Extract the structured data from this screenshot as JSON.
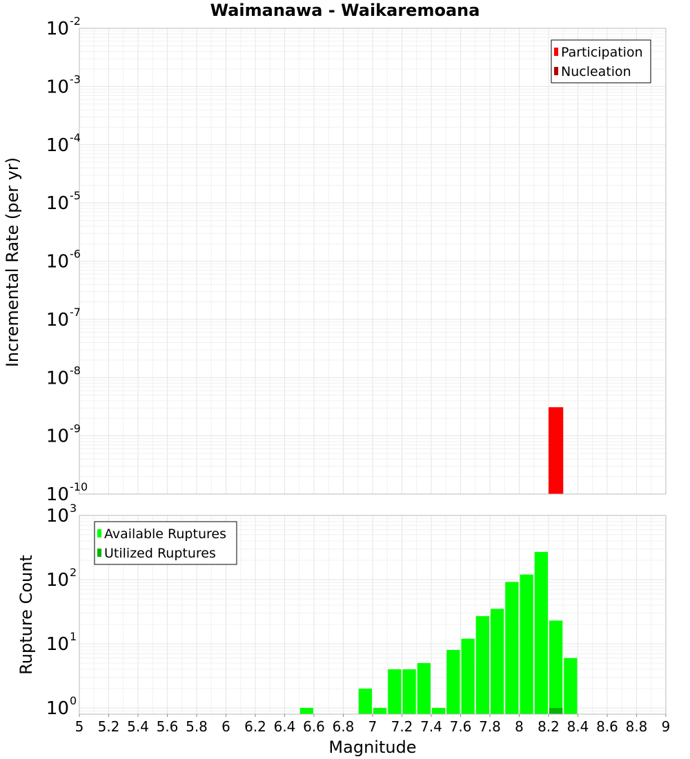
{
  "chart_data": [
    {
      "type": "bar",
      "panel": "rate",
      "title": "Waimanawa - Waikaremoana",
      "xlabel": "Magnitude",
      "ylabel": "Incremental Rate (per yr)",
      "yscale": "log",
      "ylim": [
        1e-10,
        0.01
      ],
      "y_ticks": [
        {
          "base": "10",
          "exp": "-2",
          "value": 0.01
        },
        {
          "base": "10",
          "exp": "-3",
          "value": 0.001
        },
        {
          "base": "10",
          "exp": "-4",
          "value": 0.0001
        },
        {
          "base": "10",
          "exp": "-5",
          "value": 1e-05
        },
        {
          "base": "10",
          "exp": "-6",
          "value": 1e-06
        },
        {
          "base": "10",
          "exp": "-7",
          "value": 1e-07
        },
        {
          "base": "10",
          "exp": "-8",
          "value": 1e-08
        },
        {
          "base": "10",
          "exp": "-9",
          "value": 1e-09
        },
        {
          "base": "10",
          "exp": "-10",
          "value": 1e-10
        }
      ],
      "legend": {
        "position": "top-right",
        "entries": [
          {
            "label": "Participation",
            "color": "#ff0000"
          },
          {
            "label": "Nucleation",
            "color": "#b40000"
          }
        ]
      },
      "series": [
        {
          "name": "Participation",
          "color": "#ff0000",
          "x": [
            8.25
          ],
          "values": [
            3.1e-09
          ]
        }
      ]
    },
    {
      "type": "bar",
      "panel": "count",
      "xlabel": "Magnitude",
      "ylabel": "Rupture Count",
      "yscale": "log",
      "ylim": [
        0.8,
        1000
      ],
      "xlim": [
        5,
        9
      ],
      "y_ticks": [
        {
          "base": "10",
          "exp": "3",
          "value": 1000
        },
        {
          "base": "10",
          "exp": "2",
          "value": 100
        },
        {
          "base": "10",
          "exp": "1",
          "value": 10
        },
        {
          "base": "10",
          "exp": "0",
          "value": 1
        }
      ],
      "x_ticks": [
        "5",
        "5.2",
        "5.4",
        "5.6",
        "5.8",
        "6",
        "6.2",
        "6.4",
        "6.6",
        "6.8",
        "7",
        "7.2",
        "7.4",
        "7.6",
        "7.8",
        "8",
        "8.2",
        "8.4",
        "8.6",
        "8.8",
        "9"
      ],
      "legend": {
        "position": "top-left",
        "entries": [
          {
            "label": "Available Ruptures",
            "color": "#00ff00"
          },
          {
            "label": "Utilized Ruptures",
            "color": "#00b400"
          }
        ]
      },
      "series": [
        {
          "name": "Available Ruptures",
          "color": "#00ff00",
          "x": [
            6.55,
            6.95,
            7.05,
            7.15,
            7.25,
            7.35,
            7.45,
            7.55,
            7.65,
            7.75,
            7.85,
            7.95,
            8.05,
            8.15,
            8.25,
            8.35
          ],
          "values": [
            1,
            2,
            1,
            4,
            4,
            5,
            1,
            8,
            12,
            27,
            35,
            92,
            120,
            270,
            23,
            6
          ]
        },
        {
          "name": "Utilized Ruptures",
          "color": "#00b400",
          "x": [
            8.25
          ],
          "values": [
            1
          ]
        }
      ]
    }
  ]
}
